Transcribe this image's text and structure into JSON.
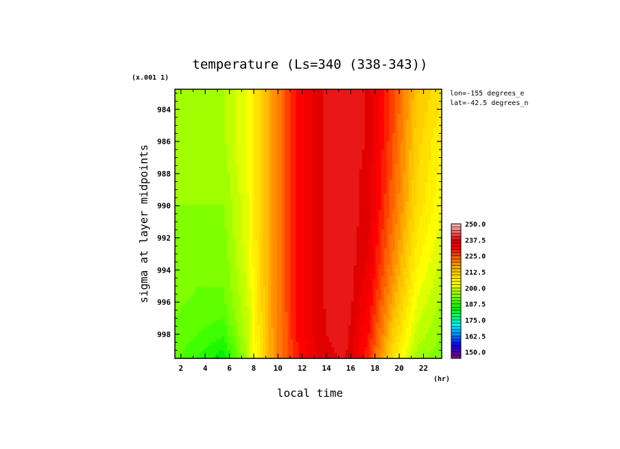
{
  "chart_data": {
    "type": "heatmap",
    "title": "temperature (Ls=340 (338-343))",
    "xlabel": "local time",
    "xunit": "(hr)",
    "ylabel": "sigma at layer midpoints",
    "yscale_note": "(x.001 1)",
    "annotations": [
      "lon=-155 degrees_e",
      "lat=-42.5 degrees_n"
    ],
    "xlim": [
      1.5,
      23.5
    ],
    "ylim": [
      999.5,
      982.75
    ],
    "x_ticks": [
      2,
      4,
      6,
      8,
      10,
      12,
      14,
      16,
      18,
      20,
      22
    ],
    "y_ticks": [
      984,
      986,
      988,
      990,
      992,
      994,
      996,
      998
    ],
    "x": [
      1.5,
      3.5,
      5.5,
      7.5,
      9.5,
      11.5,
      13.5,
      15.5,
      17.5,
      19.5,
      21.5,
      23.5
    ],
    "y": [
      982.75,
      984,
      986,
      988,
      990,
      992,
      994,
      996,
      998,
      999.5
    ],
    "z": [
      [
        196,
        197,
        197,
        203,
        218,
        230,
        237,
        240,
        237,
        226,
        213,
        208
      ],
      [
        196,
        197,
        197,
        203,
        218,
        230,
        237,
        240,
        237,
        226,
        212,
        207
      ],
      [
        196,
        196,
        197,
        203,
        218,
        230,
        237,
        240,
        237,
        225,
        211,
        205
      ],
      [
        195,
        195,
        196,
        203,
        218,
        230,
        237,
        240,
        236,
        224,
        210,
        204
      ],
      [
        195,
        195,
        195,
        202,
        218,
        230,
        237,
        240,
        236,
        223,
        209,
        203
      ],
      [
        194,
        194,
        194,
        202,
        218,
        230,
        237,
        240,
        235,
        221,
        207,
        201
      ],
      [
        194,
        193,
        193,
        201,
        218,
        230,
        237,
        240,
        234,
        219,
        205,
        199
      ],
      [
        193,
        192,
        192,
        200,
        218,
        230,
        237,
        240,
        232,
        216,
        202,
        197
      ],
      [
        192,
        190,
        188,
        199,
        217,
        230,
        237,
        239,
        230,
        212,
        199,
        195
      ],
      [
        191,
        187,
        183,
        198,
        217,
        229,
        236,
        238,
        228,
        208,
        196,
        193
      ]
    ],
    "colorbar": {
      "min": 145,
      "max": 250,
      "step": 2.5,
      "labels": [
        "250.0",
        "237.5",
        "225.0",
        "212.5",
        "200.0",
        "187.5",
        "175.0",
        "162.5",
        "150.0"
      ],
      "colors": [
        "#800090",
        "#6000a0",
        "#4000c0",
        "#2000e0",
        "#0010ff",
        "#0038ff",
        "#0060ff",
        "#0088ff",
        "#00b0ff",
        "#00d0ff",
        "#00f0f0",
        "#00ffc0",
        "#00ff90",
        "#00ff60",
        "#00ff30",
        "#00f000",
        "#20f800",
        "#40ff00",
        "#60ff00",
        "#80ff00",
        "#a0ff00",
        "#c0ff00",
        "#e0ff00",
        "#ffff00",
        "#fff000",
        "#ffe000",
        "#ffd000",
        "#ffc000",
        "#ffa800",
        "#ff9000",
        "#ff7800",
        "#ff6000",
        "#ff4000",
        "#ff2000",
        "#ff0000",
        "#f00000",
        "#e00000",
        "#e81818",
        "#f04040",
        "#f06868",
        "#f09090",
        "#f0b0b0"
      ]
    }
  }
}
